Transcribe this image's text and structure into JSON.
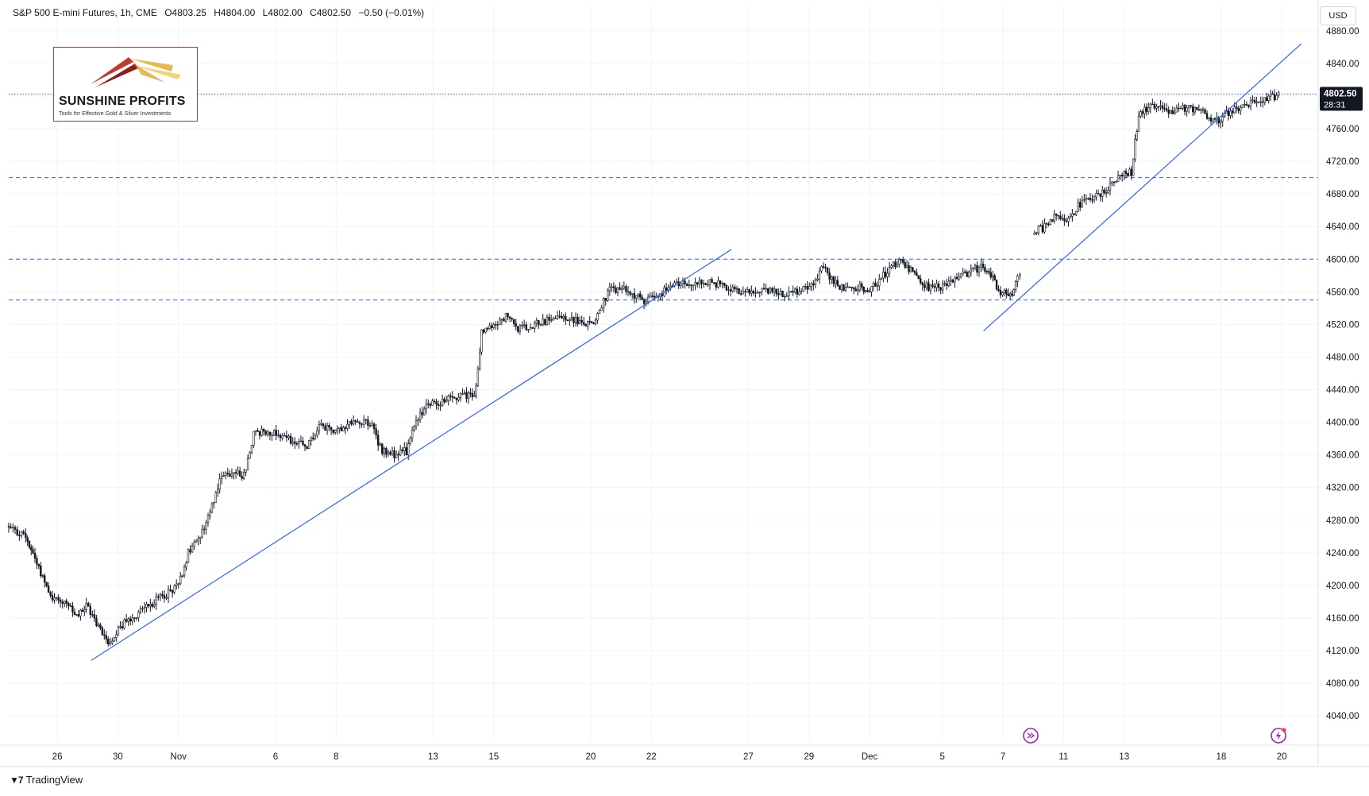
{
  "header": {
    "symbol": "S&P 500 E-mini Futures, 1h, CME",
    "open": "O4803.25",
    "high": "H4804.00",
    "low": "L4802.00",
    "close": "C4802.50",
    "change": "−0.50 (−0.01%)"
  },
  "currency_button": "USD",
  "price_badge": {
    "price": "4802.50",
    "countdown": "28:31"
  },
  "logo": {
    "name": "SUNSHINE PROFITS",
    "tagline": "Tools for Effective Gold & Silver Investments"
  },
  "footer": {
    "brand": "TradingView"
  },
  "icons": {
    "replay": "replay-icon",
    "alert": "alert-icon",
    "tv_logo": "tradingview-logo-icon"
  },
  "colors": {
    "candles": "#131722",
    "trendline": "#2962ff",
    "level_line": "#2962ff",
    "axis_text": "#131722",
    "grid": "#f0f3fa",
    "badge": "#131722"
  },
  "chart_data": {
    "type": "candlestick",
    "title": "S&P 500 E-mini Futures, 1h, CME",
    "y_unit": "USD",
    "ylim": [
      4010,
      4910
    ],
    "y_ticks": [
      4040,
      4080,
      4120,
      4160,
      4200,
      4240,
      4280,
      4320,
      4360,
      4400,
      4440,
      4480,
      4520,
      4560,
      4600,
      4640,
      4680,
      4720,
      4760,
      4800,
      4840,
      4880
    ],
    "y_tick_labels": [
      "4040.00",
      "4080.00",
      "4120.00",
      "4160.00",
      "4200.00",
      "4240.00",
      "4280.00",
      "4320.00",
      "4360.00",
      "4400.00",
      "4440.00",
      "4480.00",
      "4520.00",
      "4560.00",
      "4600.00",
      "4640.00",
      "4680.00",
      "4720.00",
      "4760.00",
      "4800.00",
      "4840.00",
      "4880.00"
    ],
    "xlim": [
      0,
      54
    ],
    "x_ticks": [
      {
        "x": 2.0,
        "label": "26"
      },
      {
        "x": 4.5,
        "label": "30"
      },
      {
        "x": 7.0,
        "label": "Nov"
      },
      {
        "x": 11.0,
        "label": "6"
      },
      {
        "x": 13.5,
        "label": "8"
      },
      {
        "x": 17.5,
        "label": "13"
      },
      {
        "x": 20.0,
        "label": "15"
      },
      {
        "x": 24.0,
        "label": "20"
      },
      {
        "x": 26.5,
        "label": "22"
      },
      {
        "x": 30.5,
        "label": "27"
      },
      {
        "x": 33.0,
        "label": "29"
      },
      {
        "x": 35.5,
        "label": "Dec"
      },
      {
        "x": 38.5,
        "label": "5"
      },
      {
        "x": 41.0,
        "label": "7"
      },
      {
        "x": 43.5,
        "label": "11"
      },
      {
        "x": 46.0,
        "label": "13"
      },
      {
        "x": 50.0,
        "label": "18"
      },
      {
        "x": 52.5,
        "label": "20"
      }
    ],
    "price_path": [
      [
        0.0,
        4270
      ],
      [
        0.7,
        4260
      ],
      [
        1.0,
        4240
      ],
      [
        1.4,
        4210
      ],
      [
        1.8,
        4185
      ],
      [
        2.3,
        4180
      ],
      [
        2.8,
        4160
      ],
      [
        3.2,
        4175
      ],
      [
        3.7,
        4150
      ],
      [
        4.1,
        4130
      ],
      [
        4.6,
        4150
      ],
      [
        5.1,
        4160
      ],
      [
        5.6,
        4175
      ],
      [
        6.0,
        4180
      ],
      [
        6.5,
        4190
      ],
      [
        7.0,
        4200
      ],
      [
        7.4,
        4240
      ],
      [
        7.9,
        4260
      ],
      [
        8.3,
        4290
      ],
      [
        8.7,
        4330
      ],
      [
        9.2,
        4340
      ],
      [
        9.7,
        4335
      ],
      [
        10.1,
        4385
      ],
      [
        10.6,
        4390
      ],
      [
        11.2,
        4385
      ],
      [
        11.8,
        4375
      ],
      [
        12.3,
        4370
      ],
      [
        12.8,
        4395
      ],
      [
        13.3,
        4390
      ],
      [
        13.8,
        4395
      ],
      [
        14.3,
        4400
      ],
      [
        14.9,
        4400
      ],
      [
        15.4,
        4365
      ],
      [
        15.9,
        4360
      ],
      [
        16.4,
        4365
      ],
      [
        16.8,
        4400
      ],
      [
        17.3,
        4425
      ],
      [
        17.8,
        4425
      ],
      [
        18.3,
        4430
      ],
      [
        18.8,
        4435
      ],
      [
        19.2,
        4430
      ],
      [
        19.5,
        4510
      ],
      [
        20.0,
        4520
      ],
      [
        20.5,
        4530
      ],
      [
        21.0,
        4515
      ],
      [
        21.6,
        4520
      ],
      [
        22.2,
        4525
      ],
      [
        22.8,
        4530
      ],
      [
        23.3,
        4525
      ],
      [
        23.8,
        4520
      ],
      [
        24.2,
        4525
      ],
      [
        24.7,
        4560
      ],
      [
        25.2,
        4565
      ],
      [
        25.8,
        4555
      ],
      [
        26.2,
        4550
      ],
      [
        26.7,
        4555
      ],
      [
        27.2,
        4565
      ],
      [
        27.8,
        4570
      ],
      [
        28.4,
        4570
      ],
      [
        29.0,
        4572
      ],
      [
        29.6,
        4565
      ],
      [
        30.2,
        4558
      ],
      [
        30.8,
        4560
      ],
      [
        31.4,
        4560
      ],
      [
        32.0,
        4558
      ],
      [
        32.6,
        4562
      ],
      [
        33.1,
        4570
      ],
      [
        33.6,
        4590
      ],
      [
        34.1,
        4570
      ],
      [
        34.6,
        4562
      ],
      [
        35.1,
        4568
      ],
      [
        35.5,
        4560
      ],
      [
        35.9,
        4575
      ],
      [
        36.4,
        4590
      ],
      [
        36.8,
        4600
      ],
      [
        37.2,
        4585
      ],
      [
        37.6,
        4570
      ],
      [
        38.1,
        4565
      ],
      [
        38.6,
        4568
      ],
      [
        39.1,
        4575
      ],
      [
        39.6,
        4585
      ],
      [
        40.1,
        4590
      ],
      [
        40.5,
        4580
      ],
      [
        40.9,
        4560
      ],
      [
        41.3,
        4555
      ],
      [
        41.6,
        4575
      ],
      [
        41.8,
        4590
      ],
      [
        42.3,
        4635
      ],
      [
        42.8,
        4640
      ],
      [
        43.2,
        4655
      ],
      [
        43.7,
        4650
      ],
      [
        44.1,
        4665
      ],
      [
        44.6,
        4675
      ],
      [
        45.1,
        4680
      ],
      [
        45.5,
        4695
      ],
      [
        46.0,
        4705
      ],
      [
        46.3,
        4706
      ],
      [
        46.6,
        4780
      ],
      [
        47.0,
        4785
      ],
      [
        47.5,
        4790
      ],
      [
        48.0,
        4780
      ],
      [
        48.5,
        4785
      ],
      [
        49.0,
        4785
      ],
      [
        49.5,
        4775
      ],
      [
        49.9,
        4770
      ],
      [
        50.3,
        4780
      ],
      [
        50.8,
        4785
      ],
      [
        51.3,
        4792
      ],
      [
        51.8,
        4795
      ],
      [
        52.2,
        4800
      ],
      [
        52.45,
        4803
      ]
    ],
    "horizontal_levels": [
      {
        "price": 4802.5,
        "style": "dotted"
      },
      {
        "price": 4700,
        "style": "dashed"
      },
      {
        "price": 4600,
        "style": "dashed"
      },
      {
        "price": 4550,
        "style": "dashed"
      }
    ],
    "trendlines": [
      {
        "from": [
          3.4,
          4108
        ],
        "to": [
          29.8,
          4612
        ]
      },
      {
        "from": [
          40.2,
          4512
        ],
        "to": [
          53.3,
          4864
        ]
      }
    ],
    "last_price": 4802.5
  }
}
